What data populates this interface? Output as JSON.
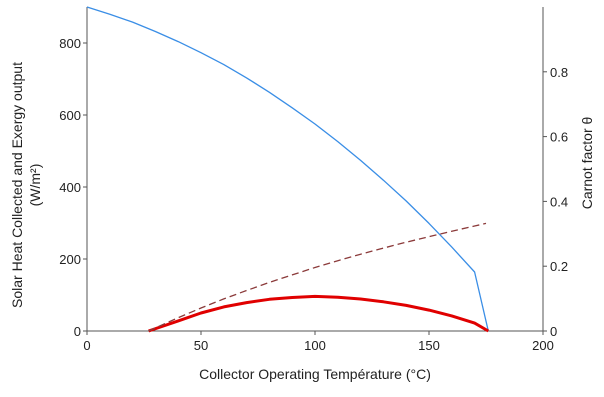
{
  "chart_data": {
    "type": "line",
    "xlabel": "Collector Operating Température (°C)",
    "ylabel_left_line1": "Solar Heat Collected and Exergy output",
    "ylabel_left_line2": "(W/m²)",
    "ylabel_right": "Carnot factor θ",
    "xlim": [
      0,
      200
    ],
    "ylim_left": [
      0,
      900
    ],
    "ylim_right": [
      0,
      1.0
    ],
    "x_ticks": [
      "0",
      "50",
      "100",
      "150",
      "200"
    ],
    "y_left_ticks": [
      "0",
      "200",
      "400",
      "600",
      "800"
    ],
    "y_right_ticks": [
      "0",
      "0.2",
      "0.4",
      "0.6",
      "0.8"
    ],
    "grid": false,
    "series": [
      {
        "axis": "left",
        "color": "#3a8ee6",
        "style": "solid",
        "x": [
          0,
          10,
          20,
          30,
          40,
          50,
          60,
          70,
          80,
          90,
          100,
          110,
          120,
          130,
          140,
          150,
          160,
          170,
          176
        ],
        "y": [
          900,
          880,
          858,
          832,
          804,
          773,
          740,
          703,
          663,
          620,
          575,
          526,
          474,
          419,
          361,
          299,
          233,
          164,
          0
        ]
      },
      {
        "axis": "left",
        "color": "#e00000",
        "style": "solid-thick",
        "x": [
          27,
          40,
          50,
          60,
          70,
          80,
          90,
          100,
          110,
          120,
          130,
          140,
          150,
          160,
          170,
          176
        ],
        "y": [
          0,
          28,
          50,
          67,
          79,
          88,
          93,
          96,
          94,
          89,
          81,
          71,
          58,
          42,
          22,
          0
        ]
      },
      {
        "axis": "right",
        "color": "#8b3a3a",
        "style": "dashed",
        "x": [
          27,
          40,
          50,
          60,
          70,
          80,
          90,
          100,
          110,
          120,
          130,
          140,
          150,
          160,
          170,
          175
        ],
        "y": [
          0.0,
          0.041,
          0.071,
          0.099,
          0.125,
          0.15,
          0.173,
          0.196,
          0.217,
          0.237,
          0.256,
          0.274,
          0.291,
          0.308,
          0.324,
          0.332
        ]
      }
    ]
  }
}
